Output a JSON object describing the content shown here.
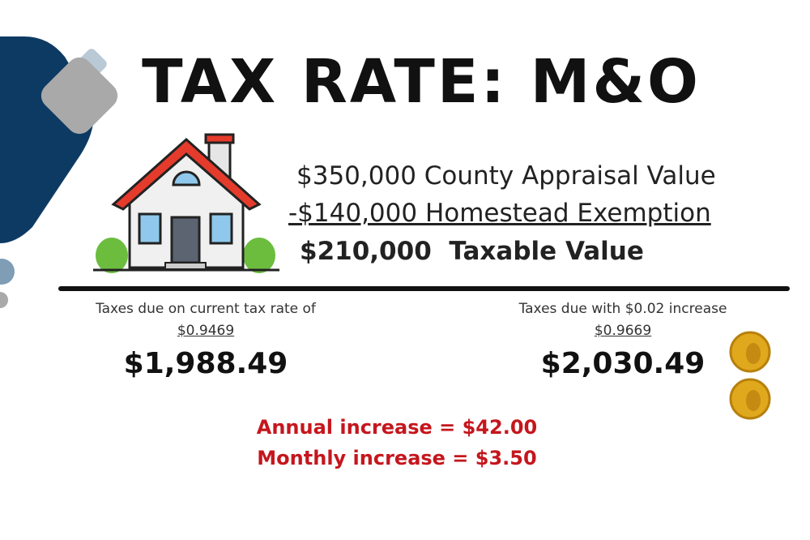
{
  "header": {
    "title": "TAX RATE: M&O"
  },
  "valuation": {
    "appraisal": "$350,000 County Appraisal Value",
    "exemption": "-$140,000 Homestead Exemption",
    "taxable": "$210,000  Taxable Value"
  },
  "current": {
    "label": "Taxes due on current tax rate of",
    "rate": "$0.9469",
    "amount": "$1,988.49"
  },
  "proposed": {
    "label": "Taxes due with $0.02 increase",
    "rate": "$0.9669",
    "amount": "$2,030.49"
  },
  "increase": {
    "annual": "Annual increase = $42.00",
    "monthly": "Monthly increase = $3.50"
  }
}
